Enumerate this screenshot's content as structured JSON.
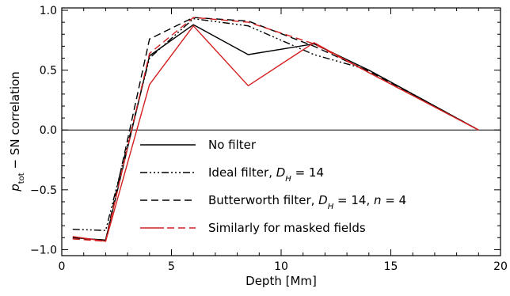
{
  "chart_data": {
    "type": "line",
    "xlabel": "Depth [Mm]",
    "ylabel": "p_tot − SN correlation",
    "xlim": [
      0,
      20
    ],
    "ylim": [
      -1.05,
      1.02
    ],
    "x_ticks": [
      "0",
      "5",
      "10",
      "15",
      "20"
    ],
    "y_ticks": [
      "−1.0",
      "−0.5",
      "0.0",
      "0.5",
      "1.0"
    ],
    "grid": false,
    "zero_line": 0,
    "legend_position": "bottom-center",
    "colors": {
      "black": "#000000",
      "red": "#d42020"
    },
    "series": [
      {
        "name": "No filter",
        "color": "#000000",
        "dash": "solid",
        "points": [
          [
            0.5,
            -0.9
          ],
          [
            2,
            -0.92
          ],
          [
            4,
            0.62
          ],
          [
            6,
            0.88
          ],
          [
            8.5,
            0.63
          ],
          [
            11.5,
            0.72
          ],
          [
            14,
            0.5
          ],
          [
            19,
            0.0
          ]
        ]
      },
      {
        "name": "Ideal filter, D_H = 14",
        "color": "#000000",
        "dash": "dashdot",
        "points": [
          [
            0.5,
            -0.83
          ],
          [
            2,
            -0.84
          ],
          [
            4,
            0.6
          ],
          [
            6,
            0.93
          ],
          [
            8.5,
            0.87
          ],
          [
            11.5,
            0.63
          ],
          [
            14,
            0.5
          ],
          [
            19,
            0.0
          ]
        ]
      },
      {
        "name": "Butterworth filter, D_H = 14, n = 4",
        "color": "#000000",
        "dash": "dash",
        "points": [
          [
            0.5,
            -0.91
          ],
          [
            2,
            -0.92
          ],
          [
            4,
            0.76
          ],
          [
            6,
            0.94
          ],
          [
            8.5,
            0.91
          ],
          [
            11.5,
            0.7
          ],
          [
            14,
            0.49
          ],
          [
            19,
            0.0
          ]
        ]
      },
      {
        "name": "Similarly for masked fields",
        "color": "#d42020",
        "dash": "solid",
        "legend": false,
        "points": [
          [
            0.5,
            -0.89
          ],
          [
            2,
            -0.93
          ],
          [
            4,
            0.38
          ],
          [
            6,
            0.87
          ],
          [
            8.5,
            0.37
          ],
          [
            11.5,
            0.73
          ],
          [
            14,
            0.48
          ],
          [
            19,
            0.0
          ]
        ]
      },
      {
        "name": "Similarly for masked fields",
        "color": "#d42020",
        "dash": "dash",
        "points": [
          [
            0.5,
            -0.91
          ],
          [
            2,
            -0.93
          ],
          [
            4,
            0.64
          ],
          [
            6,
            0.94
          ],
          [
            8.5,
            0.9
          ],
          [
            11.5,
            0.72
          ],
          [
            14,
            0.48
          ],
          [
            19,
            0.0
          ]
        ]
      }
    ]
  }
}
